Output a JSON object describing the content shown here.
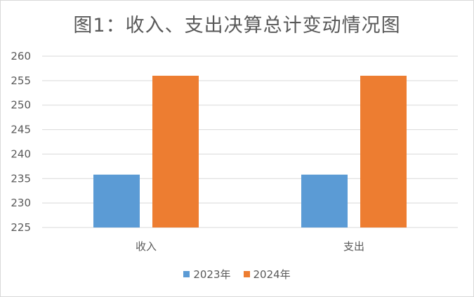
{
  "chart_data": {
    "type": "bar",
    "title": "图1：收入、支出决算总计变动情况图",
    "categories": [
      "收入",
      "支出"
    ],
    "series": [
      {
        "name": "2023年",
        "values": [
          235.8,
          235.8
        ],
        "color": "#5b9bd5"
      },
      {
        "name": "2024年",
        "values": [
          256,
          256
        ],
        "color": "#ed7d31"
      }
    ],
    "ylim": [
      225,
      260
    ],
    "yticks": [
      225,
      230,
      235,
      240,
      245,
      250,
      255,
      260
    ],
    "grid": true,
    "legend_position": "bottom",
    "xlabel": "",
    "ylabel": ""
  }
}
